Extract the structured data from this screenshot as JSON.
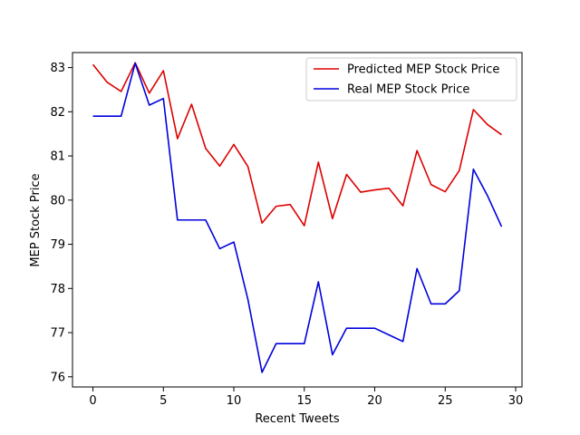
{
  "chart_data": {
    "type": "line",
    "title": "",
    "xlabel": "Recent Tweets",
    "ylabel": "MEP Stock Price",
    "xlim": [
      -1.45,
      30.45
    ],
    "ylim": [
      75.77,
      83.34
    ],
    "xticks": [
      0,
      5,
      10,
      15,
      20,
      25,
      30
    ],
    "yticks": [
      76,
      77,
      78,
      79,
      80,
      81,
      82,
      83
    ],
    "grid": false,
    "legend": "top-right",
    "x": [
      0,
      1,
      2,
      3,
      4,
      5,
      6,
      7,
      8,
      9,
      10,
      11,
      12,
      13,
      14,
      15,
      16,
      17,
      18,
      19,
      20,
      21,
      22,
      23,
      24,
      25,
      26,
      27,
      28,
      29
    ],
    "series": [
      {
        "name": "Predicted MEP Stock Price",
        "color": "#dd0000",
        "values": [
          83.07,
          82.67,
          82.46,
          83.11,
          82.42,
          82.93,
          81.39,
          82.17,
          81.17,
          80.77,
          81.26,
          80.76,
          79.48,
          79.86,
          79.9,
          79.42,
          80.86,
          79.58,
          80.58,
          80.18,
          80.23,
          80.27,
          79.87,
          81.12,
          80.35,
          80.19,
          80.67,
          82.05,
          81.71,
          81.48
        ]
      },
      {
        "name": "Real MEP Stock Price",
        "color": "#0000dd",
        "values": [
          81.9,
          81.9,
          81.9,
          83.1,
          82.15,
          82.3,
          79.55,
          79.55,
          79.55,
          78.9,
          79.05,
          77.75,
          76.1,
          76.75,
          76.75,
          76.75,
          78.15,
          76.5,
          77.1,
          77.1,
          77.1,
          76.95,
          76.8,
          78.45,
          77.65,
          77.65,
          77.95,
          80.7,
          80.1,
          79.4
        ]
      }
    ]
  }
}
